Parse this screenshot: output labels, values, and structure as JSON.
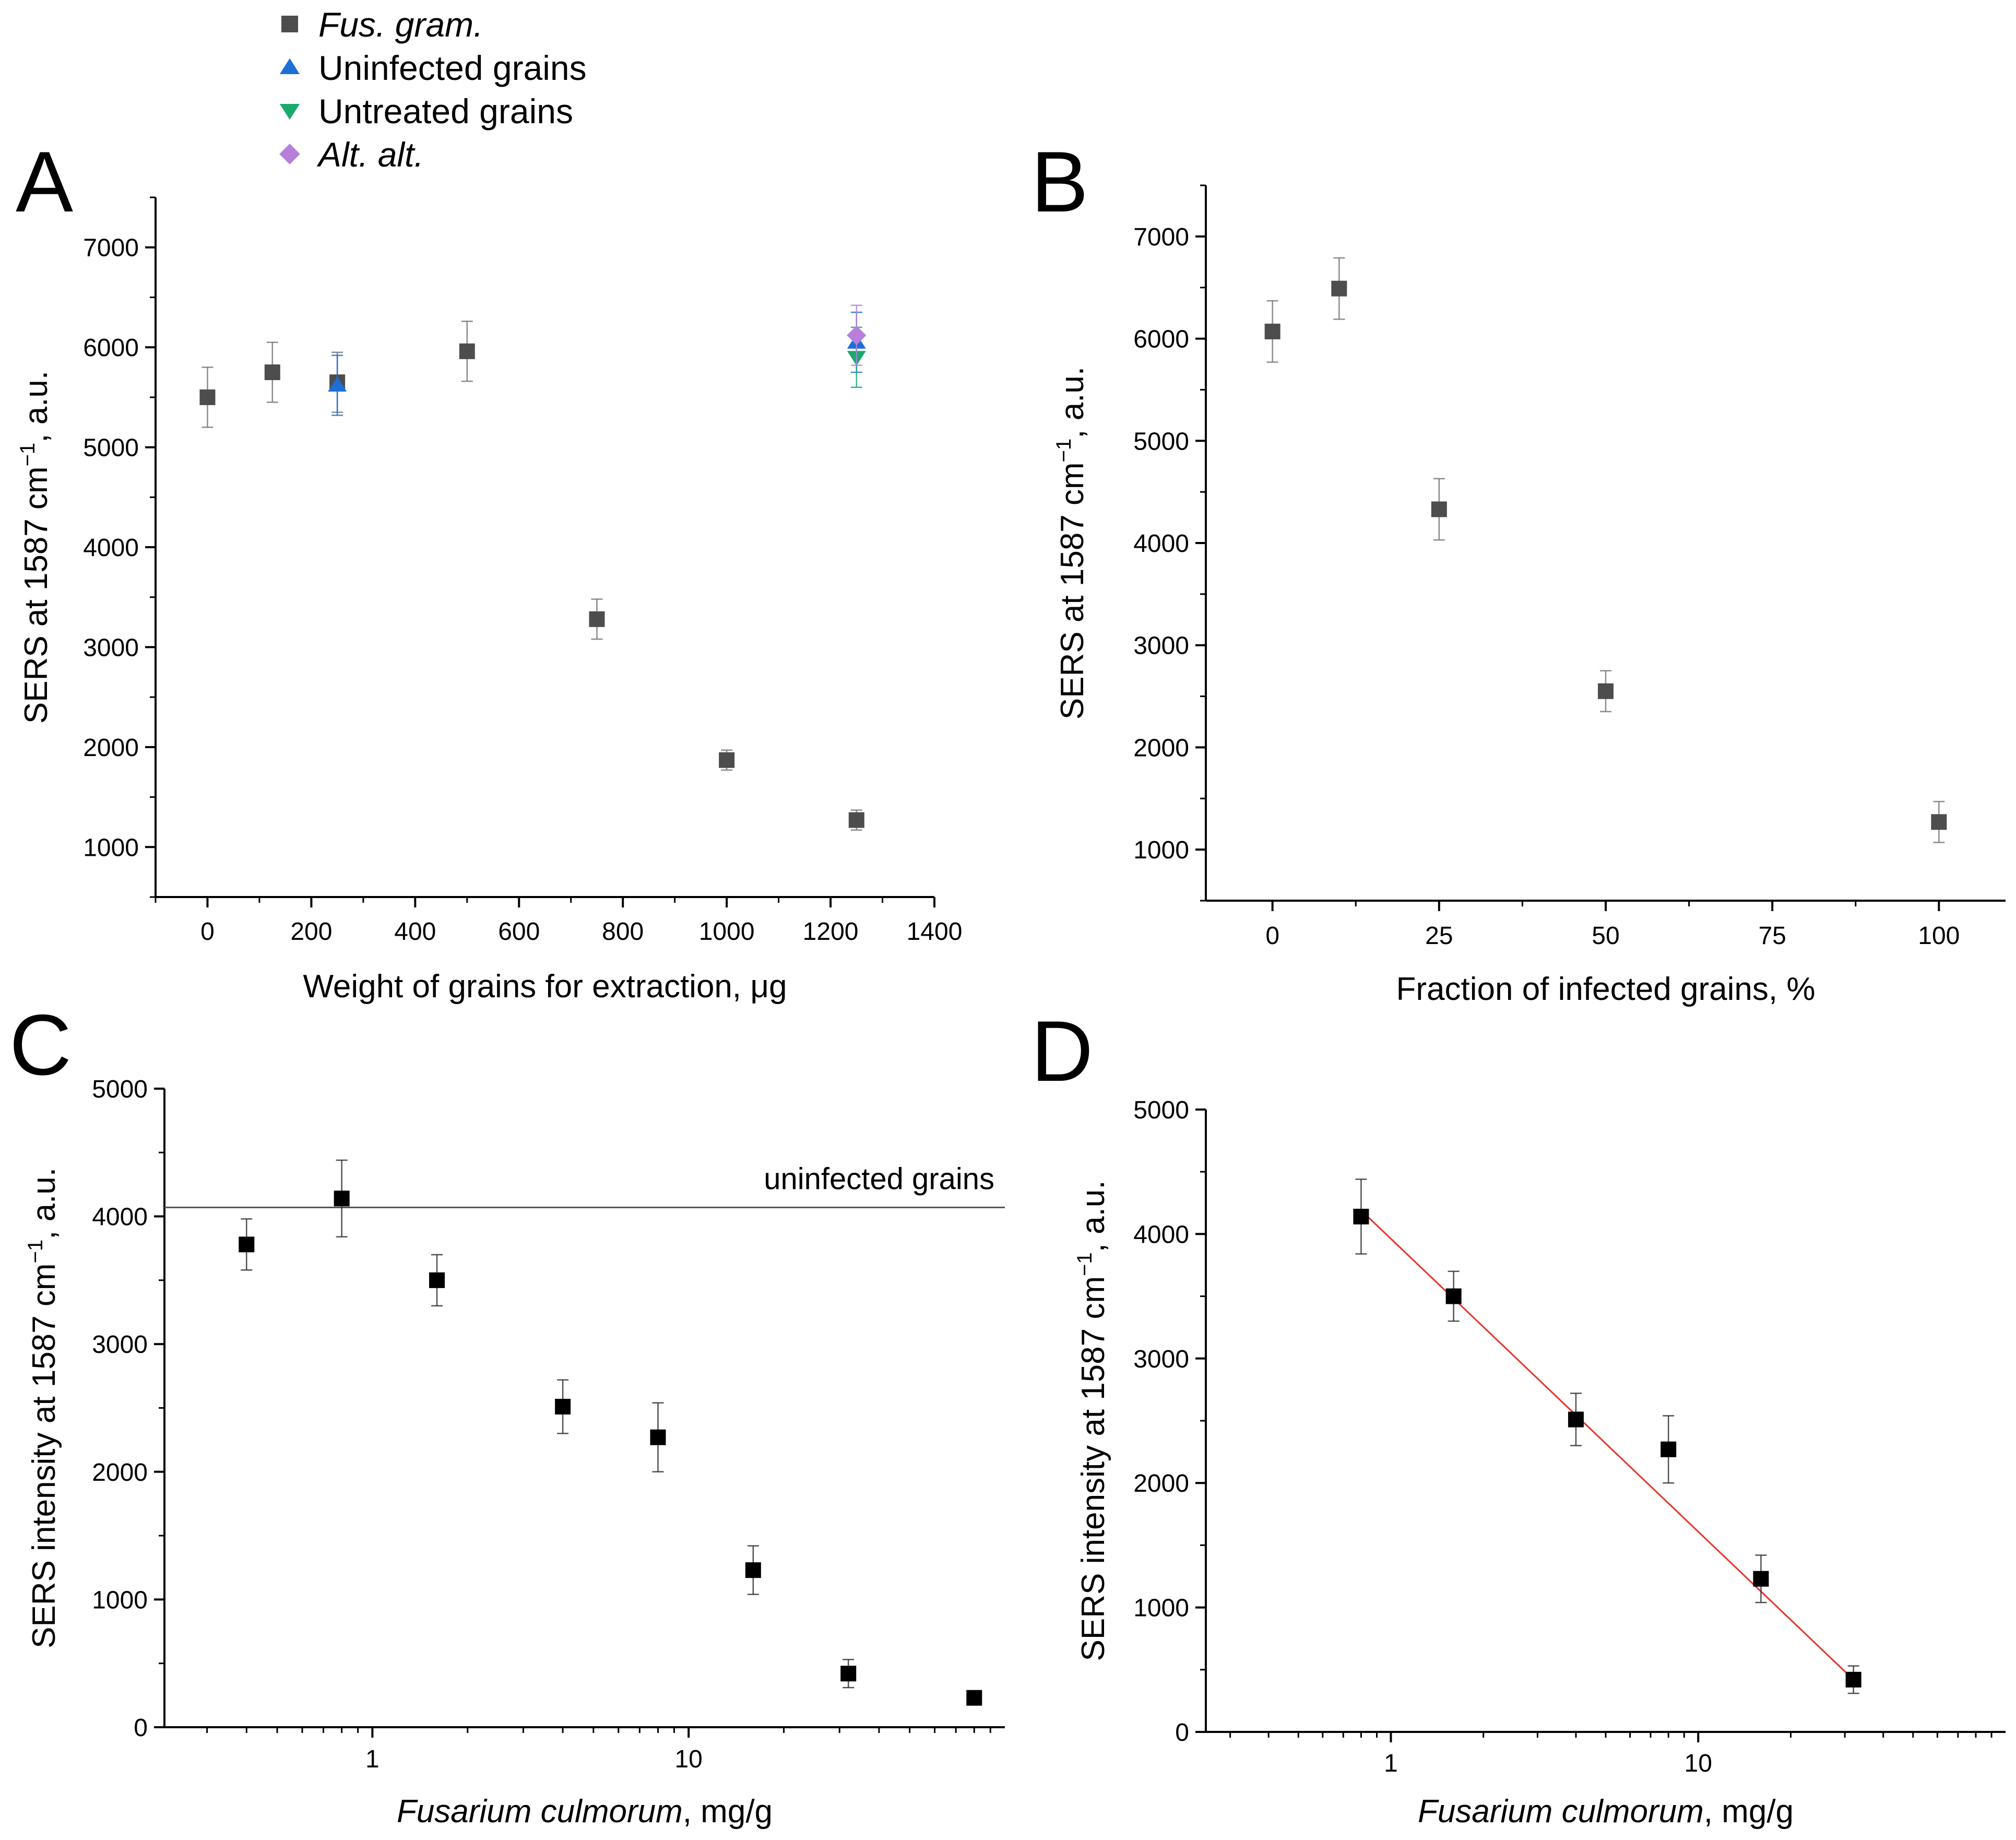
{
  "legend": {
    "entries": [
      {
        "label": "Fus. gram.",
        "italic": true,
        "marker": "square",
        "color": "#4d4d4d"
      },
      {
        "label": "Uninfected grains",
        "italic": false,
        "marker": "triangle-up",
        "color": "#1d6fd6"
      },
      {
        "label": "Untreated grains",
        "italic": false,
        "marker": "triangle-down",
        "color": "#1aaa6e"
      },
      {
        "label": "Alt. alt.",
        "italic": true,
        "marker": "diamond",
        "color": "#b77fd9"
      }
    ]
  },
  "chart_data": [
    {
      "panel": "A",
      "type": "scatter",
      "xlabel": "Weight of grains for extraction, μg",
      "ylabel_parts": [
        "SERS at 1587 cm",
        "−1",
        ", a.u."
      ],
      "xscale": "linear",
      "xlim": [
        -100,
        1400
      ],
      "ylim": [
        500,
        7500
      ],
      "xticks": [
        0,
        200,
        400,
        600,
        800,
        1000,
        1200,
        1400
      ],
      "yticks": [
        1000,
        2000,
        3000,
        4000,
        5000,
        6000,
        7000
      ],
      "series": [
        {
          "name": "Fus. gram.",
          "marker": "square",
          "color": "#4d4d4d",
          "points": [
            {
              "x": 0,
              "y": 5500,
              "err": 300
            },
            {
              "x": 125,
              "y": 5750,
              "err": 300
            },
            {
              "x": 250,
              "y": 5650,
              "err": 300
            },
            {
              "x": 500,
              "y": 5960,
              "err": 300
            },
            {
              "x": 750,
              "y": 3280,
              "err": 200
            },
            {
              "x": 1000,
              "y": 1870,
              "err": 100
            },
            {
              "x": 1250,
              "y": 1270,
              "err": 100
            }
          ]
        },
        {
          "name": "Uninfected grains",
          "marker": "triangle-up",
          "color": "#1d6fd6",
          "points": [
            {
              "x": 250,
              "y": 5620,
              "err": 300
            },
            {
              "x": 1250,
              "y": 6050,
              "err": 300
            }
          ]
        },
        {
          "name": "Untreated grains",
          "marker": "triangle-down",
          "color": "#1aaa6e",
          "points": [
            {
              "x": 1250,
              "y": 5900,
              "err": 300
            }
          ]
        },
        {
          "name": "Alt. alt.",
          "marker": "diamond",
          "color": "#b77fd9",
          "points": [
            {
              "x": 1250,
              "y": 6120,
              "err": 300
            }
          ]
        }
      ]
    },
    {
      "panel": "B",
      "type": "scatter",
      "xlabel": "Fraction of infected grains, %",
      "ylabel_parts": [
        "SERS at 1587 cm",
        "−1",
        ", a.u."
      ],
      "xscale": "linear",
      "xlim": [
        -10,
        110
      ],
      "ylim": [
        500,
        7500
      ],
      "xticks": [
        0,
        25,
        50,
        75,
        100
      ],
      "yticks": [
        1000,
        2000,
        3000,
        4000,
        5000,
        6000,
        7000
      ],
      "series": [
        {
          "name": "Fus. gram.",
          "marker": "square",
          "color": "#4d4d4d",
          "points": [
            {
              "x": 0,
              "y": 6070,
              "err": 300
            },
            {
              "x": 10,
              "y": 6490,
              "err": 300
            },
            {
              "x": 25,
              "y": 4330,
              "err": 300
            },
            {
              "x": 50,
              "y": 2550,
              "err": 200
            },
            {
              "x": 100,
              "y": 1270,
              "err": 200
            }
          ]
        }
      ]
    },
    {
      "panel": "C",
      "type": "scatter",
      "xlabel_italic": "Fusarium culmorum",
      "xlabel_rest": ", mg/g",
      "ylabel_parts": [
        "SERS intensity at 1587 cm",
        "−1",
        ", a.u."
      ],
      "xscale": "log",
      "xlim": [
        0.22,
        100
      ],
      "ylim": [
        0,
        5000
      ],
      "xticks": [
        1,
        10
      ],
      "xtick_labels": [
        "1",
        "10"
      ],
      "yticks": [
        0,
        1000,
        2000,
        3000,
        4000,
        5000
      ],
      "reference_line": {
        "y": 4070,
        "label": "uninfected grains"
      },
      "series": [
        {
          "name": "Fusarium culmorum",
          "marker": "square",
          "color": "#000000",
          "points": [
            {
              "x": 0.4,
              "y": 3780,
              "err": 200
            },
            {
              "x": 0.8,
              "y": 4140,
              "err": 300
            },
            {
              "x": 1.6,
              "y": 3500,
              "err": 200
            },
            {
              "x": 4,
              "y": 2510,
              "err": 210
            },
            {
              "x": 8,
              "y": 2270,
              "err": 270
            },
            {
              "x": 16,
              "y": 1230,
              "err": 190
            },
            {
              "x": 32,
              "y": 420,
              "err": 110
            },
            {
              "x": 80,
              "y": 230,
              "err": 0
            }
          ]
        }
      ]
    },
    {
      "panel": "D",
      "type": "scatter",
      "xlabel_italic": "Fusarium culmorum",
      "xlabel_rest": ", mg/g",
      "ylabel_parts": [
        "SERS intensity at 1587 cm",
        "−1",
        ", a.u."
      ],
      "xscale": "log",
      "xlim": [
        0.25,
        100
      ],
      "ylim": [
        0,
        5000
      ],
      "xticks": [
        1,
        10
      ],
      "xtick_labels": [
        "1",
        "10"
      ],
      "yticks": [
        0,
        1000,
        2000,
        3000,
        4000,
        5000
      ],
      "fit_line": {
        "x": [
          0.8,
          32
        ],
        "y": [
          4190,
          420
        ],
        "color": "#e8332a"
      },
      "series": [
        {
          "name": "Fusarium culmorum",
          "marker": "square",
          "color": "#000000",
          "points": [
            {
              "x": 0.8,
              "y": 4140,
              "err": 300
            },
            {
              "x": 1.6,
              "y": 3500,
              "err": 200
            },
            {
              "x": 4,
              "y": 2510,
              "err": 210
            },
            {
              "x": 8,
              "y": 2270,
              "err": 270
            },
            {
              "x": 16,
              "y": 1230,
              "err": 190
            },
            {
              "x": 32,
              "y": 420,
              "err": 110
            }
          ]
        }
      ]
    }
  ]
}
